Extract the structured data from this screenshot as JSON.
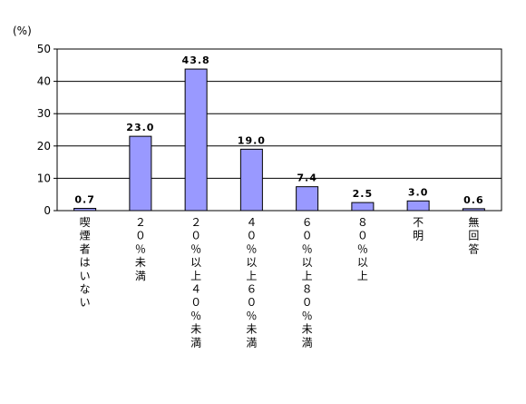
{
  "chart_data": {
    "type": "bar",
    "unit_label": "(%)",
    "categories": [
      "喫煙者はいない",
      "２０％未満",
      "２０％以上４０％未満",
      "４０％以上６０％未満",
      "６０％以上８０％未満",
      "８０％以上",
      "不明",
      "無回答"
    ],
    "values": [
      0.7,
      23.0,
      43.8,
      19.0,
      7.4,
      2.5,
      3.0,
      0.6
    ],
    "value_labels": [
      "0.7",
      "23.0",
      "43.8",
      "19.0",
      "7.4",
      "2.5",
      "3.0",
      "0.6"
    ],
    "ylim": [
      0,
      50
    ],
    "yticks": [
      "0",
      "10",
      "20",
      "30",
      "40",
      "50"
    ],
    "grid": true,
    "colors": {
      "bar_fill": "#9999ff",
      "bar_stroke": "#000000",
      "grid": "#000000"
    }
  }
}
